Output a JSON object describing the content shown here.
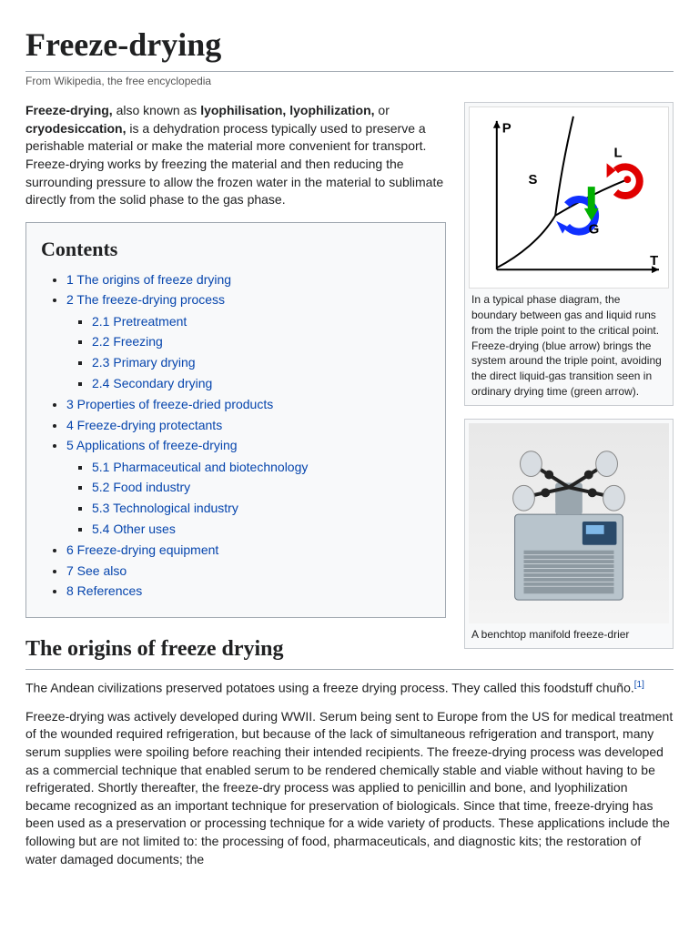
{
  "title": "Freeze-drying",
  "subtitle": "From Wikipedia, the free encyclopedia",
  "intro": {
    "bold1": "Freeze-drying,",
    "t1": " also known as ",
    "bold2": "lyophilisation, lyophilization,",
    "t2": " or ",
    "bold3": "cryodesiccation,",
    "t3": " is a dehydration process typically used to preserve a perishable material or make the material more convenient for transport. Freeze-drying works by freezing the material and then reducing the surrounding pressure to allow the frozen water in the material to sublimate directly from the solid phase to the gas phase."
  },
  "toc": {
    "heading": "Contents",
    "items": [
      {
        "num": "1",
        "label": "The origins of freeze drying"
      },
      {
        "num": "2",
        "label": "The freeze-drying process",
        "children": [
          {
            "num": "2.1",
            "label": "Pretreatment"
          },
          {
            "num": "2.2",
            "label": "Freezing"
          },
          {
            "num": "2.3",
            "label": "Primary drying"
          },
          {
            "num": "2.4",
            "label": "Secondary drying"
          }
        ]
      },
      {
        "num": "3",
        "label": "Properties of freeze-dried products"
      },
      {
        "num": "4",
        "label": "Freeze-drying protectants"
      },
      {
        "num": "5",
        "label": "Applications of freeze-drying",
        "children": [
          {
            "num": "5.1",
            "label": "Pharmaceutical and biotechnology"
          },
          {
            "num": "5.2",
            "label": "Food industry"
          },
          {
            "num": "5.3",
            "label": "Technological industry"
          },
          {
            "num": "5.4",
            "label": "Other uses"
          }
        ]
      },
      {
        "num": "6",
        "label": "Freeze-drying equipment"
      },
      {
        "num": "7",
        "label": "See also"
      },
      {
        "num": "8",
        "label": "References"
      }
    ]
  },
  "figure1": {
    "caption": "In a typical phase diagram, the boundary between gas and liquid runs from the triple point to the critical point. Freeze-drying (blue arrow) brings the system around the triple point, avoiding the direct liquid-gas transition seen in ordinary drying time (green arrow).",
    "labels": {
      "P": "P",
      "T": "T",
      "S": "S",
      "L": "L",
      "G": "G"
    },
    "colors": {
      "axis": "#000000",
      "curve": "#000000",
      "blue_arrow": "#1030ff",
      "green_arrow": "#00b000",
      "red_arrow": "#e00000",
      "dot": "#e00000"
    }
  },
  "figure2": {
    "caption": "A benchtop manifold freeze-drier",
    "colors": {
      "body": "#b8c4cc",
      "grille": "#8e9aa2",
      "panel": "#2a4a6a",
      "flask": "#d8dde2",
      "tube": "#222"
    }
  },
  "section1": {
    "heading": "The origins of freeze drying",
    "p1a": "The Andean civilizations preserved potatoes using a freeze drying process. They called this foodstuff chuño.",
    "ref1": "[1]",
    "p2": "Freeze-drying was actively developed during WWII. Serum being sent to Europe from the US for medical treatment of the wounded required refrigeration, but because of the lack of simultaneous refrigeration and transport, many serum supplies were spoiling before reaching their intended recipients. The freeze-drying process was developed as a commercial technique that enabled serum to be rendered chemically stable and viable without having to be refrigerated. Shortly thereafter, the freeze-dry process was applied to penicillin and bone, and lyophilization became recognized as an important technique for preservation of biologicals. Since that time, freeze-drying has been used as a preservation or processing technique for a wide variety of products. These applications include the following but are not limited to: the processing of food, pharmaceuticals, and diagnostic kits; the restoration of water damaged documents; the"
  },
  "style": {
    "link_color": "#0645ad",
    "border_color": "#a2a9b1",
    "toc_bg": "#f8f9fa"
  }
}
